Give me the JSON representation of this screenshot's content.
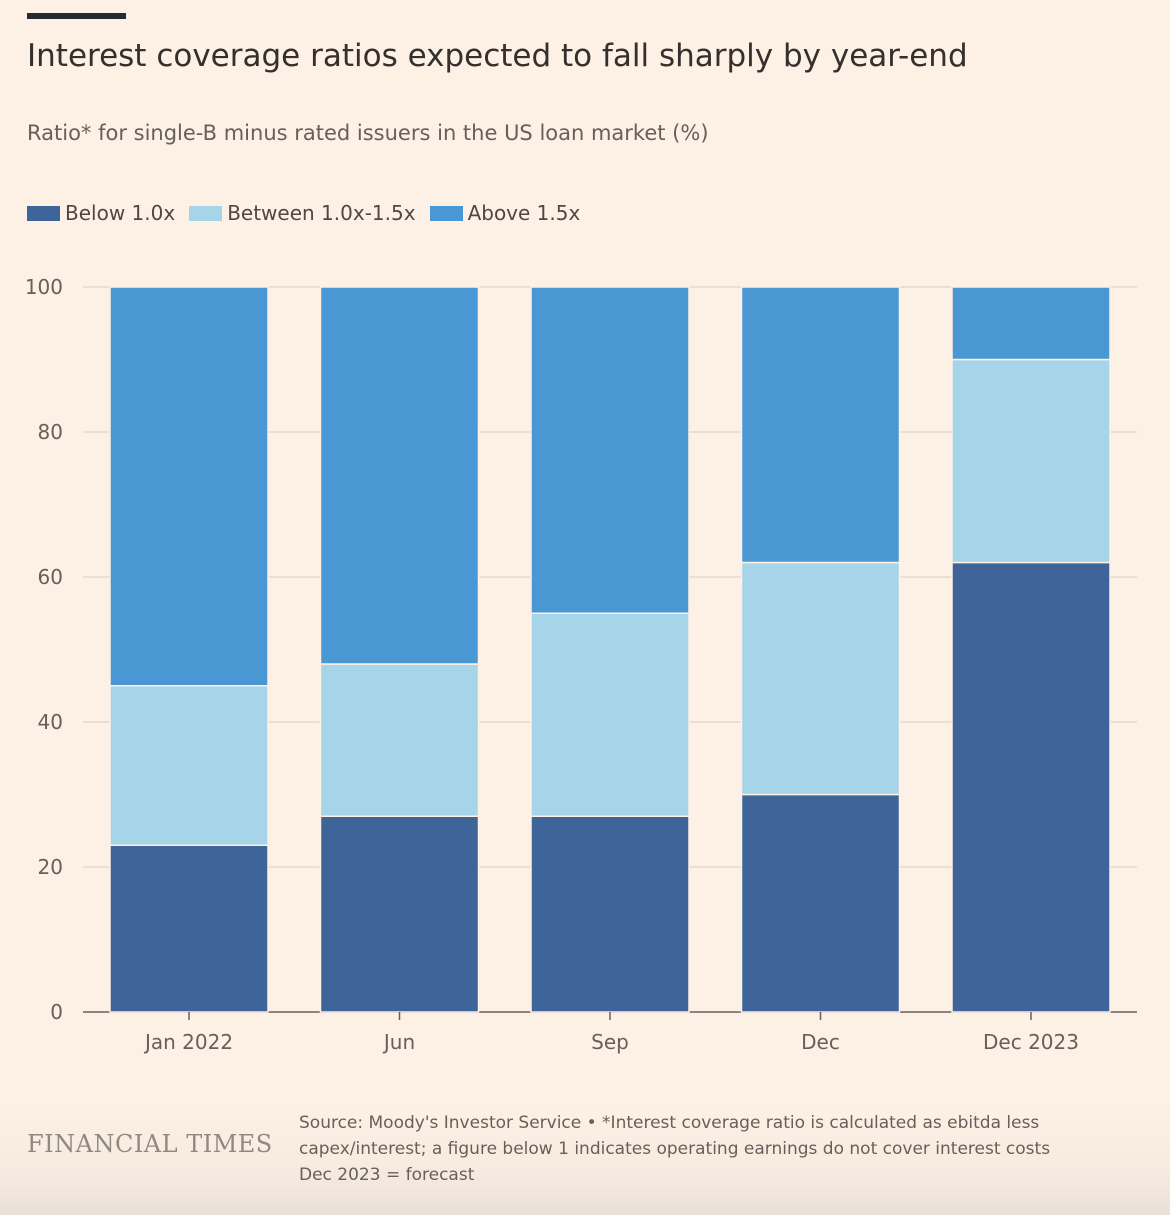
{
  "title": "Interest coverage ratios expected to fall sharply by year-end",
  "subtitle": "Ratio* for single-B minus rated issuers in the US loan market (%)",
  "legend": [
    {
      "label": "Below 1.0x",
      "color": "#3e6499"
    },
    {
      "label": "Between 1.0x-1.5x",
      "color": "#a6d4e8"
    },
    {
      "label": "Above 1.5x",
      "color": "#4a98d3"
    }
  ],
  "chart_data": {
    "type": "bar",
    "stacked": true,
    "categories": [
      "Jan 2022",
      "Jun",
      "Sep",
      "Dec",
      "Dec 2023"
    ],
    "series": [
      {
        "name": "Below 1.0x",
        "color": "#3e6499",
        "values": [
          23,
          27,
          27,
          30,
          62
        ]
      },
      {
        "name": "Between 1.0x-1.5x",
        "color": "#a6d4e8",
        "values": [
          22,
          21,
          28,
          32,
          28
        ]
      },
      {
        "name": "Above 1.5x",
        "color": "#4a98d3",
        "values": [
          55,
          52,
          45,
          38,
          10
        ]
      }
    ],
    "title": "Interest coverage ratios expected to fall sharply by year-end",
    "subtitle": "Ratio* for single-B minus rated issuers in the US loan market (%)",
    "ylim": [
      0,
      100
    ],
    "yticks": [
      0,
      20,
      40,
      60,
      80,
      100
    ],
    "grid": true,
    "legend_position": "top-left"
  },
  "footer": {
    "logo": "FINANCIAL TIMES",
    "source_lines": [
      "Source: Moody's Investor Service • *Interest coverage ratio is calculated as ebitda less",
      "capex/interest; a figure below 1 indicates operating earnings do not cover interest costs",
      "Dec 2023 = forecast"
    ]
  }
}
